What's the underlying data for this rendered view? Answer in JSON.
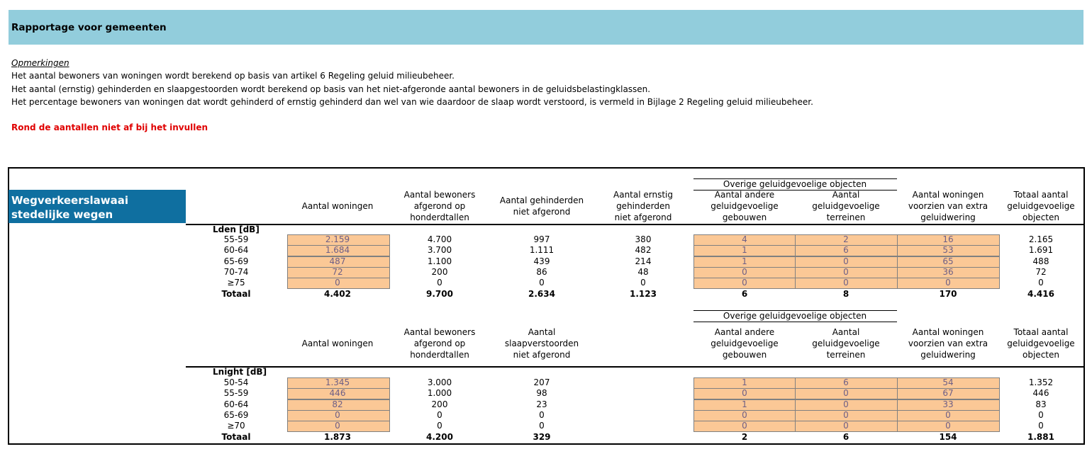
{
  "header": {
    "title": "Rapportage voor gemeenten"
  },
  "notes": {
    "heading": "Opmerkingen",
    "lines": [
      "Het aantal bewoners van woningen wordt berekend op basis van artikel 6 Regeling geluid milieubeheer.",
      "Het aantal (ernstig) gehinderden en slaapgestoorden wordt berekend op basis van het niet-afgeronde aantal bewoners in de geluidsbelastingklassen.",
      "Het percentage bewoners van woningen dat wordt gehinderd of ernstig gehinderd dan wel van wie daardoor de slaap wordt verstoord, is vermeld in Bijlage 2 Regeling geluid milieubeheer."
    ]
  },
  "warning": "Rond de aantallen niet af bij het invullen",
  "section_label": [
    "Wegverkeerslawaai",
    "stedelijke wegen"
  ],
  "tables": [
    {
      "group_header": "Overige geluidgevoelige objecten",
      "columns": [
        [
          "Aantal woningen"
        ],
        [
          "Aantal bewoners",
          "afgerond op",
          "honderdtallen"
        ],
        [
          "Aantal gehinderden",
          "niet afgerond"
        ],
        [
          "Aantal ernstig",
          "gehinderden",
          "niet afgerond"
        ],
        [
          "Aantal andere",
          "geluidgevoelige",
          "gebouwen"
        ],
        [
          "Aantal",
          "geluidgevoelige",
          "terreinen"
        ],
        [
          "Aantal woningen",
          "voorzien van extra",
          "geluidwering"
        ],
        [
          "Totaal aantal",
          "geluidgevoelige",
          "objecten"
        ]
      ],
      "unit_label": "Lden [dB]",
      "rows": [
        {
          "label": "55-59",
          "cells": [
            "2.159",
            "4.700",
            "997",
            "380",
            "4",
            "2",
            "16",
            "2.165"
          ]
        },
        {
          "label": "60-64",
          "cells": [
            "1.684",
            "3.700",
            "1.111",
            "482",
            "1",
            "6",
            "53",
            "1.691"
          ]
        },
        {
          "label": "65-69",
          "cells": [
            "487",
            "1.100",
            "439",
            "214",
            "1",
            "0",
            "65",
            "488"
          ]
        },
        {
          "label": "70-74",
          "cells": [
            "72",
            "200",
            "86",
            "48",
            "0",
            "0",
            "36",
            "72"
          ]
        },
        {
          "label": "≥75",
          "cells": [
            "0",
            "0",
            "0",
            "0",
            "0",
            "0",
            "0",
            "0"
          ]
        }
      ],
      "total": {
        "label": "Totaal",
        "cells": [
          "4.402",
          "9.700",
          "2.634",
          "1.123",
          "6",
          "8",
          "170",
          "4.416"
        ]
      }
    },
    {
      "group_header": "Overige geluidgevoelige objecten",
      "columns": [
        [
          "Aantal woningen"
        ],
        [
          "Aantal bewoners",
          "afgerond op",
          "honderdtallen"
        ],
        [
          "Aantal",
          "slaapverstoorden",
          "niet afgerond"
        ],
        [
          "Aantal andere",
          "geluidgevoelige",
          "gebouwen"
        ],
        [
          "Aantal",
          "geluidgevoelige",
          "terreinen"
        ],
        [
          "Aantal woningen",
          "voorzien van extra",
          "geluidwering"
        ],
        [
          "Totaal aantal",
          "geluidgevoelige",
          "objecten"
        ]
      ],
      "unit_label": "Lnight [dB]",
      "rows": [
        {
          "label": "50-54",
          "cells": [
            "1.345",
            "3.000",
            "207",
            "1",
            "6",
            "54",
            "1.352"
          ]
        },
        {
          "label": "55-59",
          "cells": [
            "446",
            "1.000",
            "98",
            "0",
            "0",
            "67",
            "446"
          ]
        },
        {
          "label": "60-64",
          "cells": [
            "82",
            "200",
            "23",
            "1",
            "0",
            "33",
            "83"
          ]
        },
        {
          "label": "65-69",
          "cells": [
            "0",
            "0",
            "0",
            "0",
            "0",
            "0",
            "0"
          ]
        },
        {
          "label": "≥70",
          "cells": [
            "0",
            "0",
            "0",
            "0",
            "0",
            "0",
            "0"
          ]
        }
      ],
      "total": {
        "label": "Totaal",
        "cells": [
          "1.873",
          "4.200",
          "329",
          "2",
          "6",
          "154",
          "1.881"
        ]
      }
    }
  ]
}
